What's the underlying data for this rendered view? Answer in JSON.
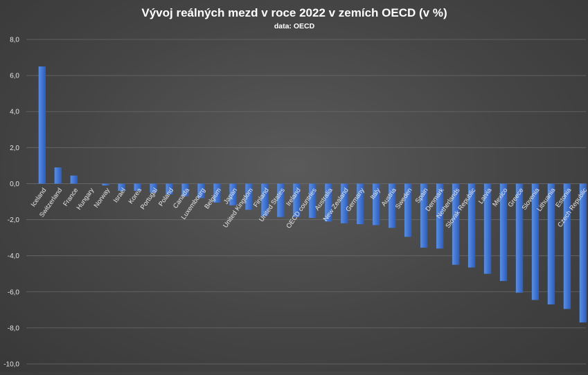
{
  "chart_data": {
    "type": "bar",
    "title": "Vývoj reálných mezd v roce 2022 v zemích OECD (v %)",
    "subtitle": "data: OECD",
    "xlabel": "",
    "ylabel": "",
    "ylim": [
      -10,
      8
    ],
    "yticks": [
      "8,0",
      "6,0",
      "4,0",
      "2,0",
      "0,0",
      "-2,0",
      "-4,0",
      "-6,0",
      "-8,0",
      "-10,0"
    ],
    "grid": true,
    "categories": [
      "Iceland",
      "Switzerland",
      "France",
      "Hungary",
      "Norway",
      "Israel",
      "Korea",
      "Portugal",
      "Poland",
      "Canada",
      "Luxembourg",
      "Belgium",
      "Japan",
      "United Kingdom",
      "Finland",
      "United States",
      "Ireland",
      "OECD countries",
      "Australia",
      "New Zealand",
      "Germany",
      "Italy",
      "Austria",
      "Sweden",
      "Spain",
      "Denmark",
      "Netherlands",
      "Slovak Republic",
      "Latvia",
      "Mexico",
      "Greece",
      "Slovenia",
      "Lithuania",
      "Estonia",
      "Czech Republic"
    ],
    "values": [
      6.5,
      0.9,
      0.45,
      0.0,
      -0.1,
      -0.4,
      -0.4,
      -0.5,
      -0.6,
      -0.7,
      -0.8,
      -1.05,
      -1.2,
      -1.45,
      -1.8,
      -1.85,
      -1.85,
      -1.9,
      -2.1,
      -2.2,
      -2.25,
      -2.3,
      -2.45,
      -2.95,
      -3.55,
      -3.6,
      -4.5,
      -4.65,
      -5.0,
      -5.4,
      -6.05,
      -6.45,
      -6.7,
      -6.95,
      -7.7
    ]
  },
  "colors": {
    "bar_top": "#5b8fe0",
    "bar_bottom": "#2a5cc0",
    "grid": "#6a6a6a",
    "text": "#ffffff",
    "axis_text": "#e6e6e6"
  }
}
